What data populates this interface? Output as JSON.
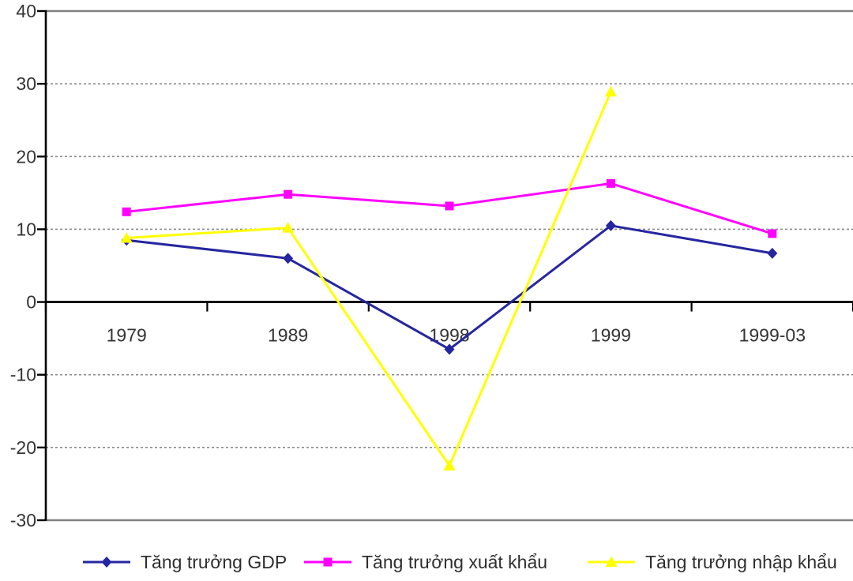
{
  "chart_data": {
    "type": "line",
    "title": "",
    "xlabel": "",
    "ylabel": "",
    "categories": [
      "1979",
      "1989",
      "1998",
      "1999",
      "1999-03"
    ],
    "series": [
      {
        "id": "gdp",
        "name": "Tăng trưởng GDP",
        "color": "#2626A0",
        "marker": "diamond",
        "values": [
          8.5,
          6.0,
          -6.5,
          10.5,
          6.7
        ]
      },
      {
        "id": "xuat-khau",
        "name": "Tăng trưởng xuất khẩu",
        "color": "#FF00FF",
        "marker": "square",
        "values": [
          12.4,
          14.8,
          13.2,
          16.3,
          9.4
        ]
      },
      {
        "id": "nhap-khau",
        "name": "Tăng trưởng nhập khẩu",
        "color": "#FFFF00",
        "marker": "triangle",
        "values": [
          8.8,
          10.2,
          -22.5,
          28.9,
          null
        ]
      }
    ],
    "y_ticks": [
      40,
      30,
      20,
      10,
      0,
      -10,
      -20,
      -30
    ],
    "ylim": [
      -30,
      40
    ],
    "grid": "horizontal-dashed",
    "legend_position": "bottom",
    "colors": {
      "axis": "#000000",
      "solid_grid": "#808080",
      "dashed_grid": "#8a8a8a",
      "tick_labels": "#353535",
      "legend_text": "#2e2e2e"
    }
  }
}
